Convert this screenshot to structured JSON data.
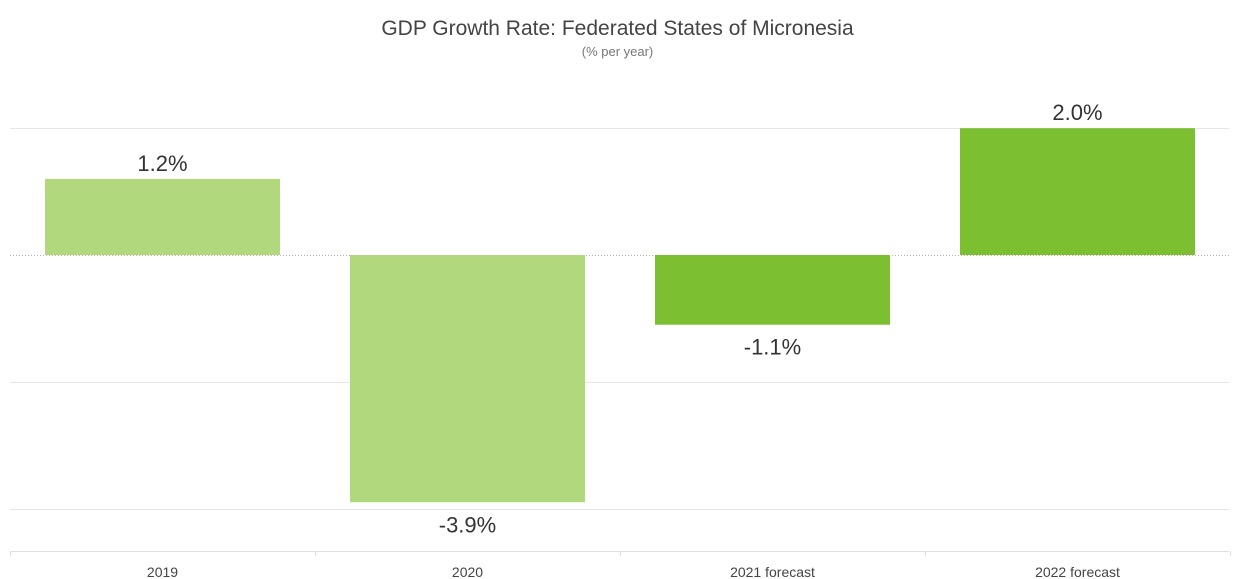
{
  "chart_data": {
    "type": "bar",
    "title": "GDP Growth Rate: Federated States of Micronesia",
    "subtitle": "(% per year)",
    "categories": [
      "2019",
      "2020",
      "2021 forecast",
      "2022 forecast"
    ],
    "values": [
      1.2,
      -3.9,
      -1.1,
      2.0
    ],
    "data_labels": [
      "1.2%",
      "-3.9%",
      "-1.1%",
      "2.0%"
    ],
    "bar_colors": [
      "#b1d87c",
      "#b1d87c",
      "#7cbf31",
      "#7cbf31"
    ],
    "ylim": [
      -4.7,
      2.7
    ],
    "gridlines": [
      2,
      -2,
      -4
    ],
    "zero_line": "dotted",
    "grid": true,
    "legend": false
  }
}
